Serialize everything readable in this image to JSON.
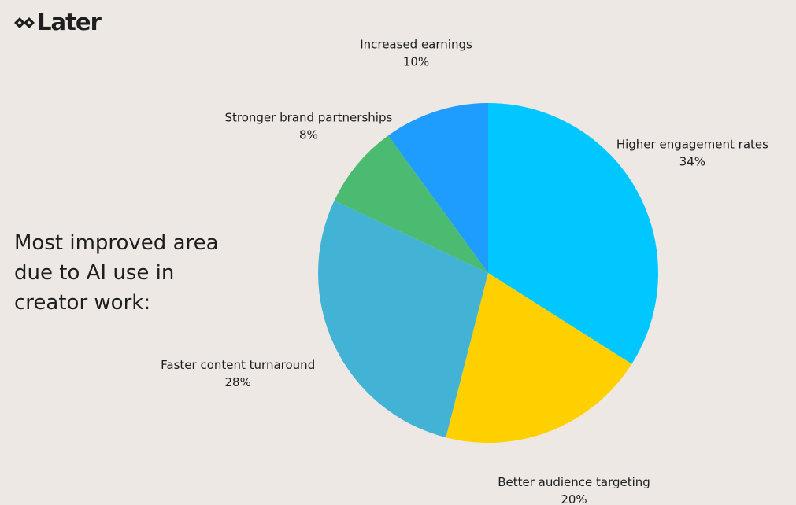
{
  "brand": {
    "name": "Later",
    "icon": "diamond-arrows-icon",
    "color": "#1e1e1e"
  },
  "heading": "Most improved area\ndue to AI use in\ncreator work:",
  "chart_data": {
    "type": "pie",
    "title": "Most improved area\ndue to AI use in\ncreator work:",
    "start": "12 o'clock",
    "direction": "clockwise",
    "slices": [
      {
        "label": "Higher engagement rates",
        "value": 34,
        "display": "34%",
        "color": "#00c7ff"
      },
      {
        "label": "Better audience targeting",
        "value": 20,
        "display": "20%",
        "color": "#ffd000"
      },
      {
        "label": "Faster content turnaround",
        "value": 28,
        "display": "28%",
        "color": "#42b3d5"
      },
      {
        "label": "Stronger brand partnerships",
        "value": 8,
        "display": "8%",
        "color": "#4cbb72"
      },
      {
        "label": "Increased earnings",
        "value": 10,
        "display": "10%",
        "color": "#1f9dff"
      }
    ],
    "legend": "none",
    "label_placement": "outside"
  },
  "colors": {
    "background": "#ede8e3",
    "text": "#1e1e1e"
  }
}
